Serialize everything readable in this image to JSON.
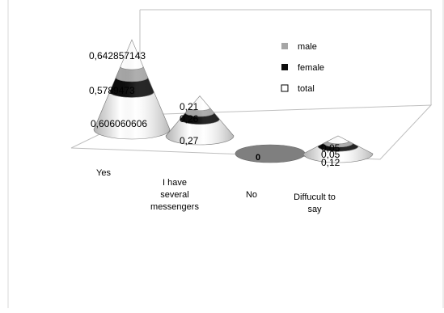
{
  "chart_data": {
    "type": "cone",
    "categories": [
      "Yes",
      "I have several messengers",
      "No",
      "Diffucult to say"
    ],
    "category_lines": [
      [
        "Yes"
      ],
      [
        "I have",
        "several",
        "messengers"
      ],
      [
        "No"
      ],
      [
        "Diffucult to",
        "say"
      ]
    ],
    "series": [
      {
        "name": "male",
        "color": "#a6a6a6",
        "values": [
          0.642857143,
          0.21,
          0,
          0.05
        ]
      },
      {
        "name": "female",
        "color": "#0d0d0d",
        "values": [
          0.578947368,
          0.26,
          0,
          0.05
        ]
      },
      {
        "name": "total",
        "color": "#ffffff",
        "values": [
          0.606060606,
          0.27,
          0,
          0.12
        ]
      }
    ],
    "data_labels": [
      [
        "0,642857143",
        "0,5789473",
        "0,606060606"
      ],
      [
        "0,21",
        "0,26",
        "0,27"
      ],
      [
        "0"
      ],
      [
        "0,05",
        "0,05",
        "0,12"
      ]
    ],
    "legend_position": "top-right",
    "grid": false
  }
}
